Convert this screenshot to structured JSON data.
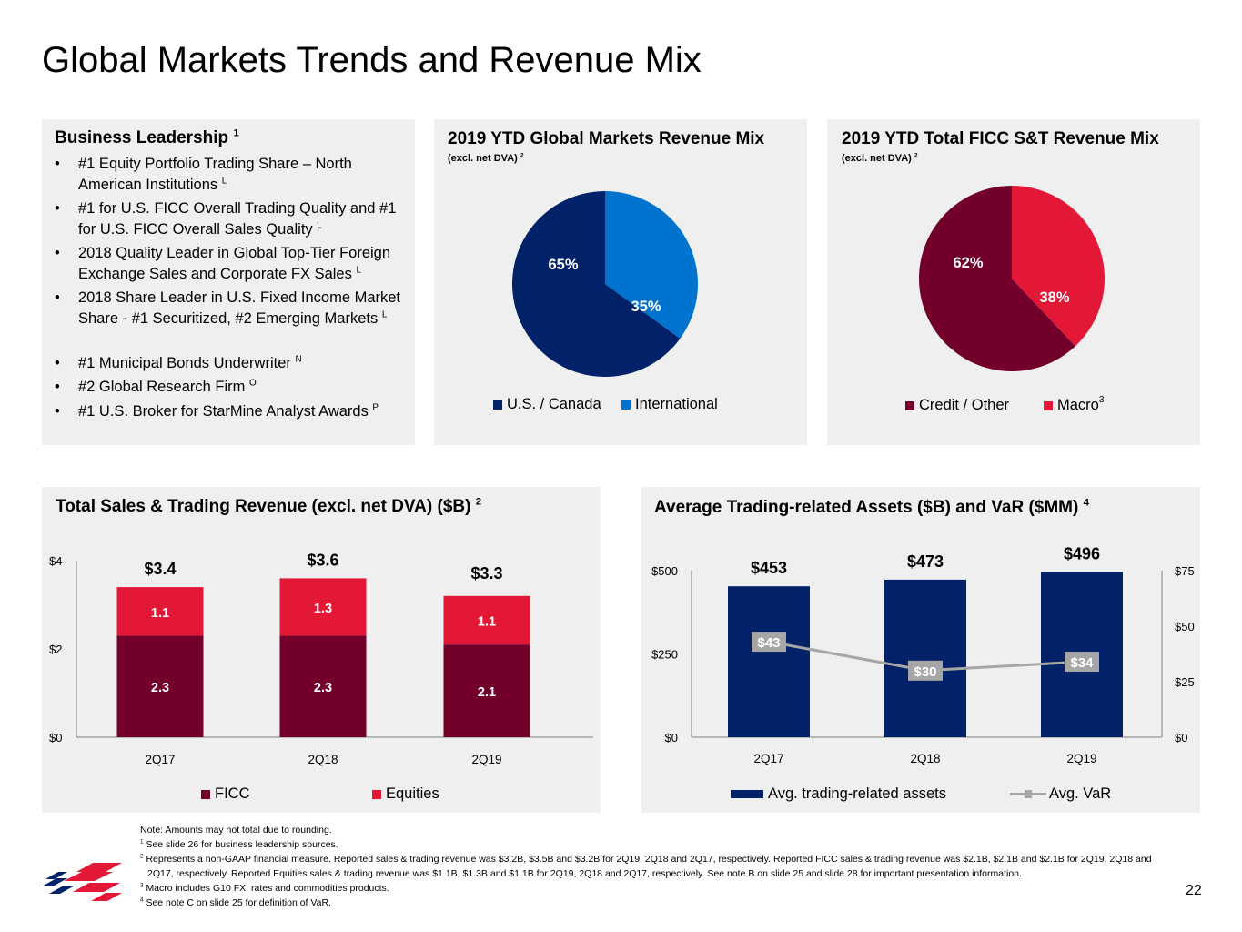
{
  "page": {
    "title": "Global Markets Trends and Revenue Mix",
    "page_number": "22"
  },
  "leadership": {
    "title": "Business Leadership",
    "title_sup": "1",
    "items": [
      {
        "text": "#1 Equity Portfolio Trading Share – North American Institutions",
        "sup": "L"
      },
      {
        "text": "#1 for U.S. FICC Overall Trading Quality and #1 for U.S. FICC Overall Sales Quality",
        "sup": "L"
      },
      {
        "text": "2018 Quality Leader in Global Top-Tier Foreign Exchange Sales and Corporate FX Sales",
        "sup": "L"
      },
      {
        "text": "2018 Share Leader in U.S. Fixed Income Market Share - #1 Securitized, #2 Emerging Markets",
        "sup": "L"
      },
      {
        "text": "#1 Municipal Bonds Underwriter",
        "sup": "N"
      },
      {
        "text": "#2 Global Research Firm",
        "sup": "O"
      },
      {
        "text": "#1 U.S. Broker for StarMine Analyst Awards",
        "sup": "P"
      }
    ]
  },
  "colors": {
    "navy": "#012169",
    "blue": "#0073cf",
    "maroon": "#72002b",
    "red": "#e31837",
    "gray": "#a6a6a6"
  },
  "chart_data": [
    {
      "type": "pie",
      "title": "2019 YTD Global Markets Revenue Mix",
      "subtitle": "(excl. net DVA)",
      "subtitle_sup": "2",
      "slices": [
        {
          "name": "U.S. / Canada",
          "value": 65,
          "label": "65%"
        },
        {
          "name": "International",
          "value": 35,
          "label": "35%"
        }
      ]
    },
    {
      "type": "pie",
      "title": "2019 YTD Total FICC S&T Revenue Mix",
      "subtitle": "(excl. net DVA)",
      "subtitle_sup": "2",
      "slices": [
        {
          "name": "Credit / Other",
          "value": 62,
          "label": "62%"
        },
        {
          "name": "Macro",
          "value": 38,
          "label": "38%",
          "note": "3"
        }
      ]
    },
    {
      "type": "bar",
      "stacked": true,
      "title": "Total Sales & Trading Revenue (excl. net DVA) ($B)",
      "title_sup": "2",
      "categories": [
        "2Q17",
        "2Q18",
        "2Q19"
      ],
      "series": [
        {
          "name": "FICC",
          "values": [
            2.3,
            2.3,
            2.1
          ],
          "labels": [
            "2.3",
            "2.3",
            "2.1"
          ]
        },
        {
          "name": "Equities",
          "values": [
            1.1,
            1.3,
            1.1
          ],
          "labels": [
            "1.1",
            "1.3",
            "1.1"
          ]
        }
      ],
      "totals": [
        3.4,
        3.6,
        3.3
      ],
      "total_labels": [
        "$3.4",
        "$3.6",
        "$3.3"
      ],
      "ylim": [
        0,
        4
      ],
      "yticks": [
        "$0",
        "$2",
        "$4"
      ]
    },
    {
      "type": "bar",
      "title": "Average Trading-related Assets ($B) and VaR ($MM)",
      "title_sup": "4",
      "categories": [
        "2Q17",
        "2Q18",
        "2Q19"
      ],
      "series": [
        {
          "name": "Avg. trading-related assets",
          "type": "bar",
          "axis": "left",
          "values": [
            453,
            473,
            496
          ],
          "labels": [
            "$453",
            "$473",
            "$496"
          ]
        },
        {
          "name": "Avg. VaR",
          "type": "line",
          "axis": "right",
          "values": [
            43,
            30,
            34
          ],
          "labels": [
            "$43",
            "$30",
            "$34"
          ]
        }
      ],
      "ylim": [
        0,
        500
      ],
      "yticks": [
        "$0",
        "$250",
        "$500"
      ],
      "y2lim": [
        0,
        75
      ],
      "y2ticks": [
        "$0",
        "$25",
        "$50",
        "$75"
      ]
    }
  ],
  "notes": [
    {
      "sup": "",
      "text": "Note: Amounts may not total due to rounding."
    },
    {
      "sup": "1",
      "text": "See slide 26 for business leadership sources."
    },
    {
      "sup": "2",
      "text": "Represents a non-GAAP financial measure. Reported sales & trading revenue was $3.2B, $3.5B and $3.2B for 2Q19, 2Q18 and 2Q17, respectively. Reported FICC sales & trading revenue was $2.1B, $2.1B and $2.1B for 2Q19, 2Q18 and 2Q17, respectively. Reported Equities sales & trading revenue was $1.1B, $1.3B and $1.1B for 2Q19, 2Q18 and 2Q17, respectively. See note B on slide 25 and slide 28 for important presentation information."
    },
    {
      "sup": "3",
      "text": "Macro includes G10 FX, rates and commodities products."
    },
    {
      "sup": "4",
      "text": "See note C on slide 25 for definition of VaR."
    }
  ]
}
